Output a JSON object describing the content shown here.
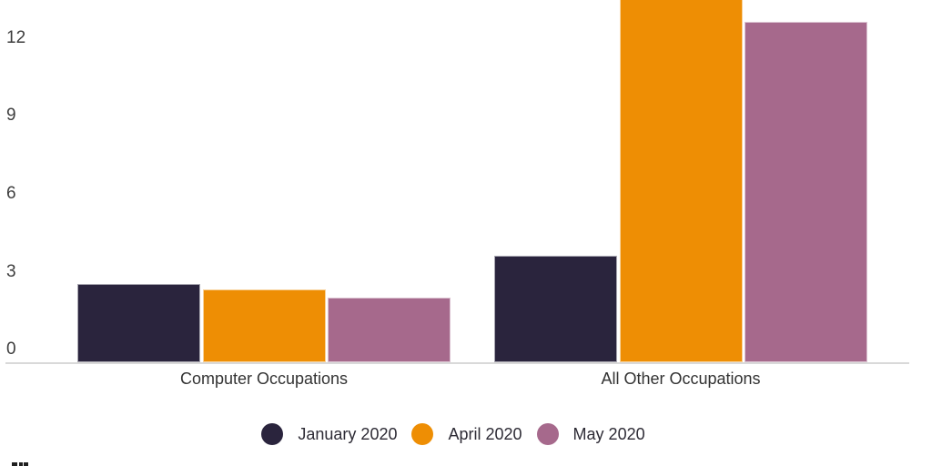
{
  "chart_data": {
    "type": "bar",
    "title": "",
    "xlabel": "",
    "ylabel": "",
    "categories": [
      "Computer Occupations",
      "All Other Occupations"
    ],
    "series": [
      {
        "name": "January 2020",
        "color": "#2a243d",
        "values": [
          3.0,
          4.1
        ]
      },
      {
        "name": "April 2020",
        "color": "#ee8e04",
        "values": [
          2.8,
          14.7
        ]
      },
      {
        "name": "May 2020",
        "color": "#a6698c",
        "values": [
          2.5,
          13.1
        ]
      }
    ],
    "y_ticks": [
      0,
      3,
      6,
      9,
      12
    ],
    "ylim_visible": [
      0,
      13.9
    ],
    "grid": false,
    "legend_position": "bottom",
    "axis_line_color": "#d9d9d9",
    "text_color": "#333333",
    "clipped_note": "Top of chart is cut off by the image edge; the April 2020 bar for All Other Occupations extends past the top (value estimated from context), and any chart title is not visible."
  }
}
